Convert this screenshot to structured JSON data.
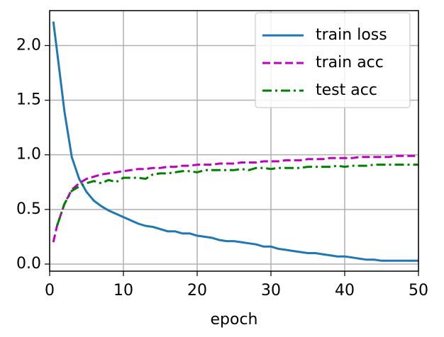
{
  "chart_data": {
    "type": "line",
    "x_label": "epoch",
    "x": [
      0.5,
      1,
      2,
      3,
      4,
      5,
      6,
      7,
      8,
      9,
      10,
      11,
      12,
      13,
      14,
      15,
      16,
      17,
      18,
      19,
      20,
      21,
      22,
      23,
      24,
      25,
      26,
      27,
      28,
      29,
      30,
      31,
      32,
      33,
      34,
      35,
      36,
      37,
      38,
      39,
      40,
      41,
      42,
      43,
      44,
      45,
      46,
      47,
      48,
      49,
      50
    ],
    "series": [
      {
        "name": "train loss",
        "color": "#1f77b4",
        "dash": "solid",
        "values": [
          2.22,
          1.95,
          1.4,
          0.98,
          0.78,
          0.66,
          0.58,
          0.53,
          0.49,
          0.46,
          0.43,
          0.4,
          0.37,
          0.35,
          0.34,
          0.32,
          0.3,
          0.3,
          0.28,
          0.28,
          0.26,
          0.25,
          0.24,
          0.22,
          0.21,
          0.21,
          0.2,
          0.19,
          0.18,
          0.16,
          0.16,
          0.14,
          0.13,
          0.12,
          0.11,
          0.1,
          0.1,
          0.09,
          0.08,
          0.07,
          0.07,
          0.06,
          0.05,
          0.04,
          0.04,
          0.03,
          0.03,
          0.03,
          0.03,
          0.03,
          0.03
        ]
      },
      {
        "name": "train acc",
        "color": "#bf00bf",
        "dash": "dashed",
        "values": [
          0.2,
          0.35,
          0.55,
          0.68,
          0.74,
          0.78,
          0.8,
          0.82,
          0.83,
          0.84,
          0.85,
          0.86,
          0.87,
          0.87,
          0.88,
          0.88,
          0.89,
          0.89,
          0.9,
          0.9,
          0.91,
          0.91,
          0.91,
          0.92,
          0.92,
          0.92,
          0.93,
          0.93,
          0.93,
          0.94,
          0.94,
          0.94,
          0.95,
          0.95,
          0.95,
          0.96,
          0.96,
          0.96,
          0.97,
          0.97,
          0.97,
          0.97,
          0.98,
          0.98,
          0.98,
          0.98,
          0.98,
          0.99,
          0.99,
          0.99,
          0.99
        ]
      },
      {
        "name": "test acc",
        "color": "#008000",
        "dash": "dashdot",
        "values": [
          null,
          0.35,
          0.55,
          0.67,
          0.71,
          0.74,
          0.76,
          0.74,
          0.77,
          0.75,
          0.79,
          0.79,
          0.79,
          0.78,
          0.82,
          0.83,
          0.83,
          0.84,
          0.85,
          0.85,
          0.84,
          0.86,
          0.86,
          0.86,
          0.86,
          0.86,
          0.87,
          0.86,
          0.88,
          0.88,
          0.87,
          0.88,
          0.88,
          0.88,
          0.88,
          0.89,
          0.89,
          0.89,
          0.89,
          0.9,
          0.89,
          0.9,
          0.9,
          0.9,
          0.91,
          0.91,
          0.91,
          0.91,
          0.91,
          0.91,
          0.91
        ]
      }
    ],
    "xlim": [
      0,
      50
    ],
    "ylim": [
      -0.065,
      2.32
    ],
    "xticks": [
      0,
      10,
      20,
      30,
      40,
      50
    ],
    "yticks": [
      {
        "value": 0,
        "label": "0.0"
      },
      {
        "value": 0.5,
        "label": "0.5"
      },
      {
        "value": 1,
        "label": "1.0"
      },
      {
        "value": 1.5,
        "label": "1.5"
      },
      {
        "value": 2,
        "label": "2.0"
      }
    ],
    "grid": true,
    "legend": "upper right"
  }
}
